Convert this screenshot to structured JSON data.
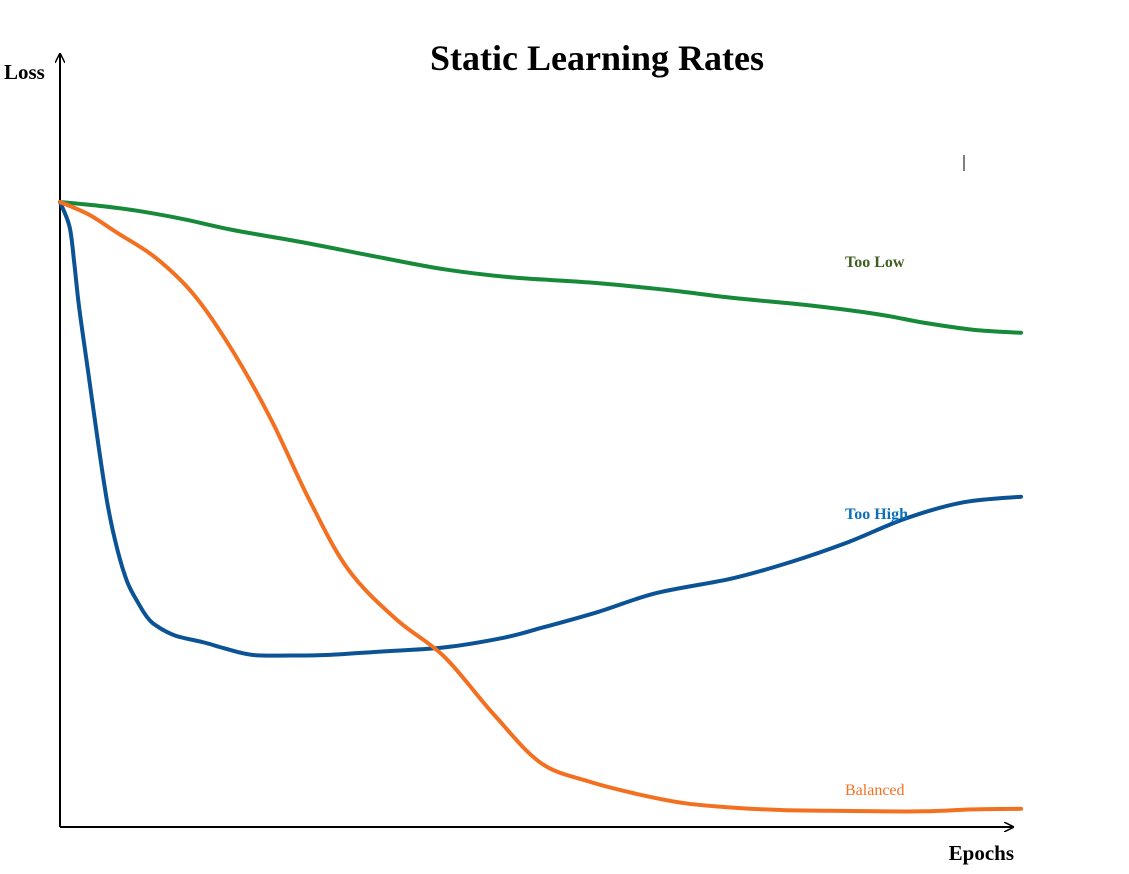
{
  "chart_data": {
    "type": "line",
    "title": "Static Learning Rates",
    "xlabel": "Epochs",
    "ylabel": "Loss",
    "xlim": [
      0,
      100
    ],
    "ylim": [
      0,
      100
    ],
    "grid": false,
    "legend": "none",
    "tick_labels": "none",
    "colors": {
      "too_low": "#178a3a",
      "too_low_label": "#3f5f22",
      "too_high": "#0b5394",
      "too_high_label": "#0b6fba",
      "balanced": "#f37021",
      "balanced_label": "#f37021",
      "axes": "#000000"
    },
    "series": [
      {
        "name": "Too Low",
        "x": [
          0,
          4,
          8,
          13,
          18,
          25,
          33,
          40,
          47,
          55,
          63,
          70,
          78,
          85,
          90,
          95,
          100
        ],
        "y": [
          100,
          99.4,
          98.6,
          97.2,
          95.5,
          93.6,
          91.2,
          89.2,
          87.9,
          87.1,
          85.9,
          84.6,
          83.4,
          82.0,
          80.6,
          79.5,
          79.0
        ]
      },
      {
        "name": "Too High",
        "x": [
          0,
          1,
          1.5,
          2,
          3,
          4,
          5,
          6,
          7,
          8,
          9,
          10,
          12,
          15,
          17,
          20,
          24,
          28,
          34,
          40,
          46,
          50,
          56,
          62,
          70,
          76,
          82,
          88,
          94,
          100
        ],
        "y": [
          100,
          96,
          90,
          83,
          72,
          61,
          51,
          44,
          39,
          36,
          33.5,
          32,
          30.4,
          29.3,
          28.4,
          27.3,
          27.2,
          27.3,
          27.9,
          28.5,
          30,
          31.6,
          34.2,
          37.2,
          39.6,
          42.2,
          45.4,
          49.2,
          51.8,
          52.7
        ]
      },
      {
        "name": "Balanced",
        "x": [
          0,
          3,
          6,
          10,
          14,
          18,
          22,
          26,
          30,
          35,
          40,
          45,
          50,
          55,
          60,
          65,
          70,
          75,
          80,
          85,
          90,
          95,
          100
        ],
        "y": [
          100,
          98,
          95,
          91,
          85,
          76,
          65,
          52,
          41,
          33,
          27,
          18,
          10,
          7,
          5,
          3.5,
          2.8,
          2.4,
          2.3,
          2.2,
          2.2,
          2.5,
          2.6
        ]
      }
    ]
  }
}
